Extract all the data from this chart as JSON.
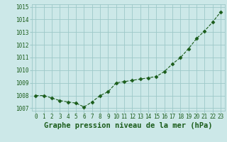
{
  "x": [
    0,
    1,
    2,
    3,
    4,
    5,
    6,
    7,
    8,
    9,
    10,
    11,
    12,
    13,
    14,
    15,
    16,
    17,
    18,
    19,
    20,
    21,
    22,
    23
  ],
  "y": [
    1008.0,
    1008.0,
    1007.8,
    1007.6,
    1007.5,
    1007.4,
    1007.1,
    1007.5,
    1008.0,
    1008.3,
    1009.0,
    1009.1,
    1009.2,
    1009.3,
    1009.4,
    1009.5,
    1009.9,
    1010.5,
    1011.0,
    1011.7,
    1012.5,
    1013.1,
    1013.8,
    1014.6
  ],
  "ylim": [
    1006.8,
    1015.2
  ],
  "yticks": [
    1007,
    1008,
    1009,
    1010,
    1011,
    1012,
    1013,
    1014,
    1015
  ],
  "xticks": [
    0,
    1,
    2,
    3,
    4,
    5,
    6,
    7,
    8,
    9,
    10,
    11,
    12,
    13,
    14,
    15,
    16,
    17,
    18,
    19,
    20,
    21,
    22,
    23
  ],
  "xlabel": "Graphe pression niveau de la mer (hPa)",
  "line_color": "#1a5c1a",
  "marker": "D",
  "marker_size": 2.5,
  "bg_color": "#cce8e8",
  "grid_color": "#9dc8c8",
  "tick_label_color": "#1a5c1a",
  "xlabel_color": "#1a5c1a",
  "tick_fontsize": 5.5,
  "xlabel_fontsize": 7.5
}
